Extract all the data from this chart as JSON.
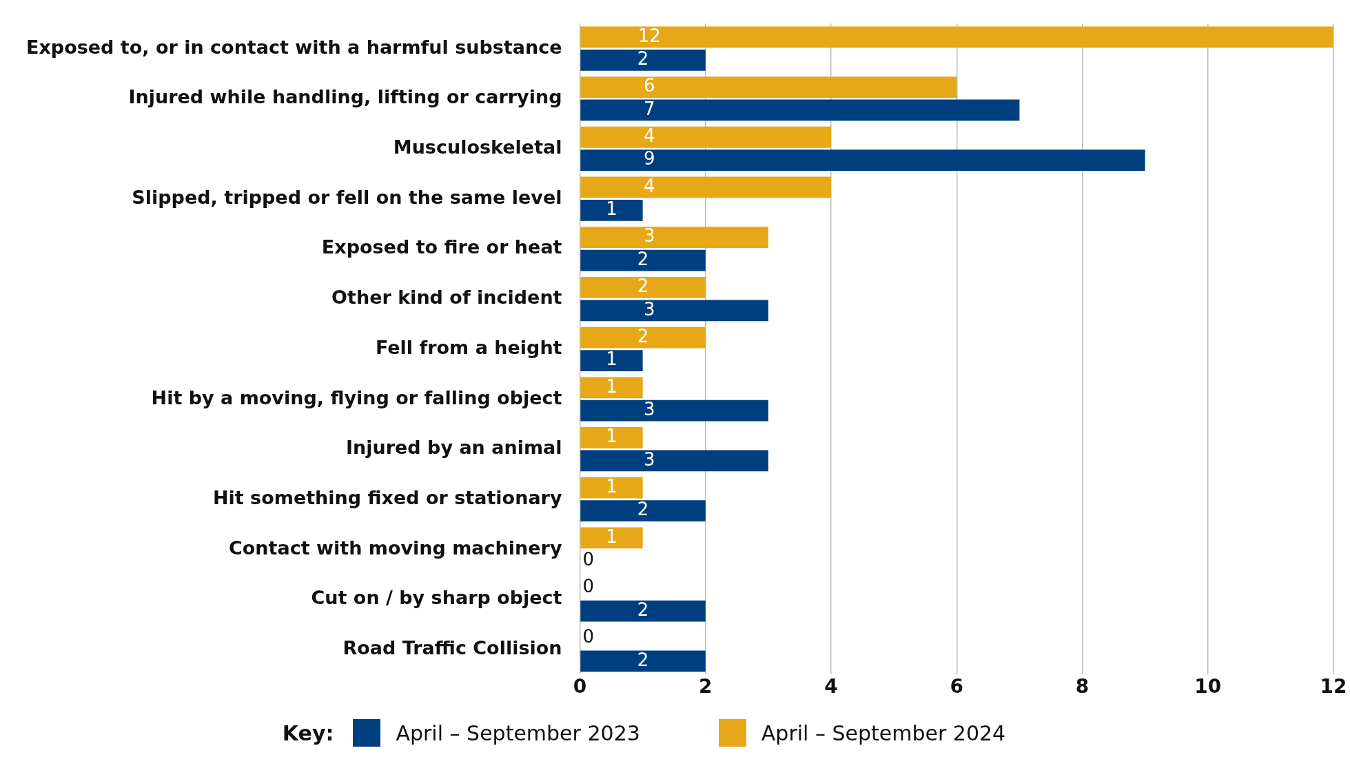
{
  "chart_data": {
    "type": "bar",
    "orientation": "horizontal",
    "categories": [
      "Exposed to, or in contact with a harmful substance",
      "Injured while handling, lifting or carrying",
      "Musculoskeletal",
      "Slipped, tripped or fell on the same level",
      "Exposed to fire or heat",
      "Other kind of incident",
      "Fell from a height",
      "Hit by a moving, flying or falling object",
      "Injured by an animal",
      "Hit something fixed or stationary",
      "Contact with moving machinery",
      "Cut on / by sharp object",
      "Road Traffic Collision"
    ],
    "series": [
      {
        "name": "April – September 2024",
        "color": "#e6a817",
        "values": [
          12,
          6,
          4,
          4,
          3,
          2,
          2,
          1,
          1,
          1,
          1,
          0,
          0
        ]
      },
      {
        "name": "April – September 2023",
        "color": "#003f7f",
        "values": [
          2,
          7,
          9,
          1,
          2,
          3,
          1,
          3,
          3,
          2,
          0,
          2,
          2
        ]
      }
    ],
    "xlim": [
      0,
      12
    ],
    "xticks": [
      0,
      2,
      4,
      6,
      8,
      10,
      12
    ],
    "grid": "x",
    "data_labels": true,
    "legend": "bottom",
    "legend_title": "Key:"
  }
}
